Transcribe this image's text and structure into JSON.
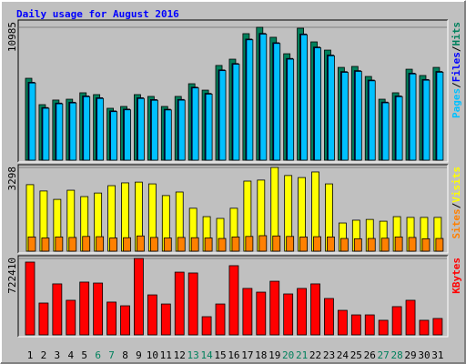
{
  "title": "Daily usage for August 2016",
  "legend_separator": "/",
  "chart_data": [
    {
      "type": "bar",
      "ylim": [
        0,
        10985
      ],
      "yticks": [
        10985
      ],
      "series": [
        {
          "name": "Hits",
          "color": "#00805C",
          "values": [
            6770,
            4590,
            4970,
            5040,
            5570,
            5420,
            4290,
            4440,
            5420,
            5270,
            4440,
            5270,
            6320,
            5790,
            7830,
            8350,
            10460,
            10985,
            10160,
            8800,
            10910,
            9780,
            9100,
            7670,
            7750,
            6920,
            5040,
            5570,
            7520,
            7000,
            7670
          ]
        },
        {
          "name": "Files",
          "color": "#0000FF",
          "values": [
            6440,
            4350,
            4720,
            4790,
            5310,
            5160,
            4070,
            4220,
            5160,
            5010,
            4210,
            5020,
            6030,
            5520,
            7460,
            7990,
            10010,
            10480,
            9710,
            8410,
            10430,
            9350,
            8690,
            7320,
            7400,
            6620,
            4800,
            5310,
            7190,
            6670,
            7330
          ]
        },
        {
          "name": "Pages",
          "color": "#00C0FF",
          "values": [
            6380,
            4290,
            4660,
            4730,
            5250,
            5100,
            4010,
            4160,
            5100,
            4950,
            4150,
            4960,
            5970,
            5460,
            7400,
            7930,
            9950,
            10420,
            9650,
            8350,
            10370,
            9290,
            8630,
            7260,
            7340,
            6560,
            4740,
            5250,
            7130,
            6610,
            7270
          ]
        }
      ]
    },
    {
      "type": "bar",
      "ylim": [
        0,
        3298
      ],
      "yticks": [
        3298
      ],
      "series": [
        {
          "name": "Visits",
          "color": "#FFFF00",
          "values": [
            2620,
            2370,
            2040,
            2400,
            2150,
            2290,
            2580,
            2690,
            2720,
            2650,
            2190,
            2330,
            1690,
            1360,
            1290,
            1690,
            2760,
            2800,
            3298,
            2980,
            2900,
            3120,
            2650,
            1110,
            1220,
            1250,
            1180,
            1360,
            1330,
            1330,
            1330
          ]
        },
        {
          "name": "Sites",
          "color": "#FF8000",
          "values": [
            560,
            520,
            560,
            540,
            580,
            570,
            520,
            530,
            600,
            540,
            520,
            540,
            530,
            520,
            500,
            560,
            580,
            610,
            600,
            580,
            560,
            570,
            560,
            500,
            490,
            500,
            510,
            560,
            540,
            490,
            500
          ]
        }
      ]
    },
    {
      "type": "bar",
      "ylim": [
        0,
        722410
      ],
      "yticks": [
        722410
      ],
      "categories": [
        "1",
        "2",
        "3",
        "4",
        "5",
        "6",
        "7",
        "8",
        "9",
        "10",
        "11",
        "12",
        "13",
        "14",
        "15",
        "16",
        "17",
        "18",
        "19",
        "20",
        "21",
        "22",
        "23",
        "24",
        "25",
        "26",
        "27",
        "28",
        "29",
        "30",
        "31"
      ],
      "category_colors": [
        "#000000",
        "#000000",
        "#000000",
        "#000000",
        "#000000",
        "#00805C",
        "#00805C",
        "#000000",
        "#000000",
        "#000000",
        "#000000",
        "#000000",
        "#00805C",
        "#00805C",
        "#000000",
        "#000000",
        "#000000",
        "#000000",
        "#000000",
        "#00805C",
        "#00805C",
        "#000000",
        "#000000",
        "#000000",
        "#000000",
        "#000000",
        "#00805C",
        "#00805C",
        "#000000",
        "#000000",
        "#000000"
      ],
      "series": [
        {
          "name": "KBytes",
          "color": "#FF0000",
          "values": [
            688000,
            301000,
            482000,
            327000,
            499000,
            490000,
            310000,
            275000,
            722410,
            378000,
            292000,
            593000,
            585000,
            172000,
            292000,
            654000,
            439000,
            404000,
            507000,
            387000,
            439000,
            482000,
            344000,
            232000,
            189000,
            189000,
            138000,
            267000,
            327000,
            138000,
            155000
          ]
        }
      ]
    }
  ]
}
